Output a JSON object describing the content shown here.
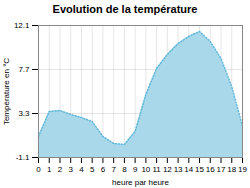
{
  "chart_data": {
    "type": "area",
    "title": "Evolution de la température",
    "xlabel": "heure par heure",
    "ylabel": "Température en °C",
    "x": [
      0,
      1,
      2,
      3,
      4,
      5,
      6,
      7,
      8,
      9,
      10,
      11,
      12,
      13,
      14,
      15,
      16,
      17,
      18,
      19
    ],
    "series": [
      {
        "type": "area",
        "color": "#a8d8ea",
        "values": [
          1.0,
          3.5,
          3.6,
          3.2,
          2.9,
          2.5,
          1.0,
          0.3,
          0.2,
          1.5,
          5.2,
          7.8,
          9.2,
          10.3,
          11.0,
          11.5,
          10.5,
          8.8,
          6.0,
          2.0
        ]
      },
      {
        "type": "line",
        "color": "#60b8d8",
        "line_style": "dotted",
        "values": [
          1.0,
          3.5,
          3.6,
          3.2,
          2.9,
          2.5,
          1.0,
          0.3,
          0.2,
          1.5,
          5.2,
          7.8,
          9.2,
          10.3,
          11.0,
          11.5,
          10.5,
          8.8,
          6.0,
          2.0
        ]
      }
    ],
    "xlim": [
      0,
      19
    ],
    "xticks": [
      0,
      1,
      2,
      3,
      4,
      5,
      6,
      7,
      8,
      9,
      10,
      11,
      12,
      13,
      14,
      15,
      16,
      17,
      18,
      19
    ],
    "ylim": [
      -1.1,
      12.1
    ],
    "yticks": [
      -1.1,
      3.3,
      7.7,
      12.1
    ],
    "grid": true
  }
}
